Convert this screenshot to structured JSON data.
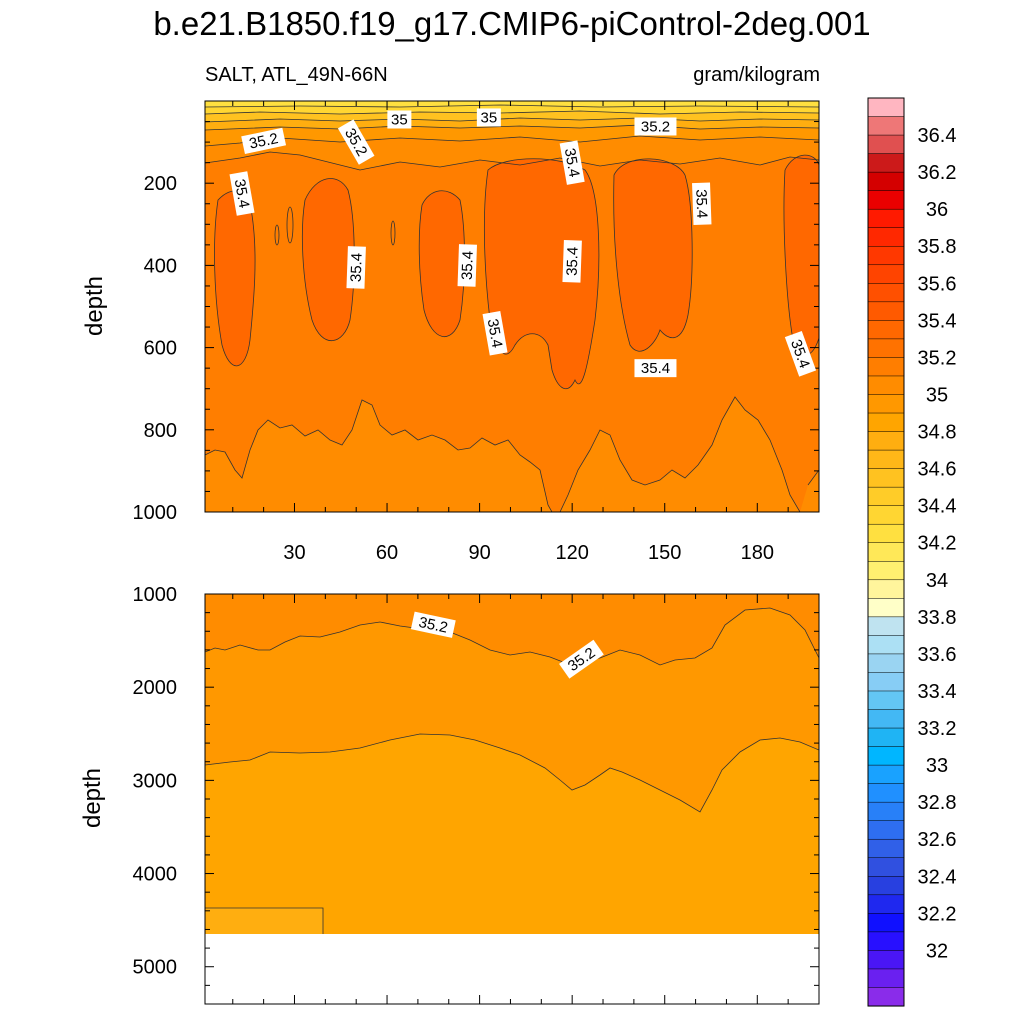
{
  "title": "b.e21.B1850.f19_g17.CMIP6-piControl-2deg.001",
  "subtitle_left": "SALT, ATL_49N-66N",
  "subtitle_right": "gram/kilogram",
  "chart_data": [
    {
      "type": "contour",
      "panel": "upper",
      "variable": "SALT",
      "region": "ATL_49N-66N",
      "units": "gram/kilogram",
      "ylabel": "depth",
      "xlim": [
        1,
        200
      ],
      "ylim": [
        1000,
        0
      ],
      "x_ticks": [
        30,
        60,
        90,
        120,
        150,
        180
      ],
      "y_ticks": [
        200,
        400,
        600,
        800,
        1000
      ],
      "contour_labels": [
        {
          "text": "35",
          "x": 64,
          "y": 45,
          "angle": 0
        },
        {
          "text": "35",
          "x": 93,
          "y": 40,
          "angle": 0
        },
        {
          "text": "35.2",
          "x": 20,
          "y": 97,
          "angle": -12
        },
        {
          "text": "35.2",
          "x": 50,
          "y": 100,
          "angle": 60
        },
        {
          "text": "35.2",
          "x": 147,
          "y": 62,
          "angle": 0
        },
        {
          "text": "35.4",
          "x": 13,
          "y": 225,
          "angle": 80
        },
        {
          "text": "35.4",
          "x": 50,
          "y": 405,
          "angle": -88
        },
        {
          "text": "35.4",
          "x": 86,
          "y": 400,
          "angle": -88
        },
        {
          "text": "35.4",
          "x": 95,
          "y": 565,
          "angle": 80
        },
        {
          "text": "35.4",
          "x": 120,
          "y": 150,
          "angle": 80
        },
        {
          "text": "35.4",
          "x": 120,
          "y": 390,
          "angle": -88
        },
        {
          "text": "35.4",
          "x": 147,
          "y": 650,
          "angle": 0
        },
        {
          "text": "35.4",
          "x": 162,
          "y": 250,
          "angle": 88
        },
        {
          "text": "35.4",
          "x": 194,
          "y": 615,
          "angle": 70
        }
      ]
    },
    {
      "type": "contour",
      "panel": "lower",
      "variable": "SALT",
      "units": "gram/kilogram",
      "ylabel": "depth",
      "xlim": [
        1,
        200
      ],
      "ylim": [
        5400,
        1000
      ],
      "y_ticks": [
        1000,
        2000,
        3000,
        4000,
        5000
      ],
      "contour_labels": [
        {
          "text": "35.2",
          "x": 75,
          "y": 1330,
          "angle": 12
        },
        {
          "text": "35.2",
          "x": 123,
          "y": 1700,
          "angle": -35
        }
      ]
    }
  ],
  "colorbar": {
    "labels": [
      "36.4",
      "36.2",
      "36",
      "35.8",
      "35.6",
      "35.4",
      "35.2",
      "35",
      "34.8",
      "34.6",
      "34.4",
      "34.2",
      "34",
      "33.8",
      "33.6",
      "33.4",
      "33.2",
      "33",
      "32.8",
      "32.6",
      "32.4",
      "32.2",
      "32"
    ],
    "colors": [
      "#ffb6c1",
      "#ee7777",
      "#e05050",
      "#cc1a1a",
      "#d40000",
      "#ea0000",
      "#ff1a00",
      "#ff2800",
      "#ff3800",
      "#ff4400",
      "#ff5000",
      "#ff5a00",
      "#ff6800",
      "#ff7200",
      "#ff7e00",
      "#ff8c00",
      "#ff9800",
      "#ffa500",
      "#ffae10",
      "#ffb718",
      "#ffc220",
      "#ffcc28",
      "#ffd632",
      "#ffe040",
      "#ffe858",
      "#fff070",
      "#fff59c",
      "#ffffc8",
      "#bfe3f0",
      "#ace0f4",
      "#9ad4f2",
      "#87cdf5",
      "#63c6f4",
      "#43b8f4",
      "#1fb4f4",
      "#00b6ff",
      "#19a2ff",
      "#2090ff",
      "#2880f8",
      "#2e6ef0",
      "#3060e8",
      "#3050e0",
      "#2840e0",
      "#1f28ef",
      "#1010ff",
      "#2810ff",
      "#4a16f5",
      "#6a20f0",
      "#8a2cea"
    ]
  }
}
